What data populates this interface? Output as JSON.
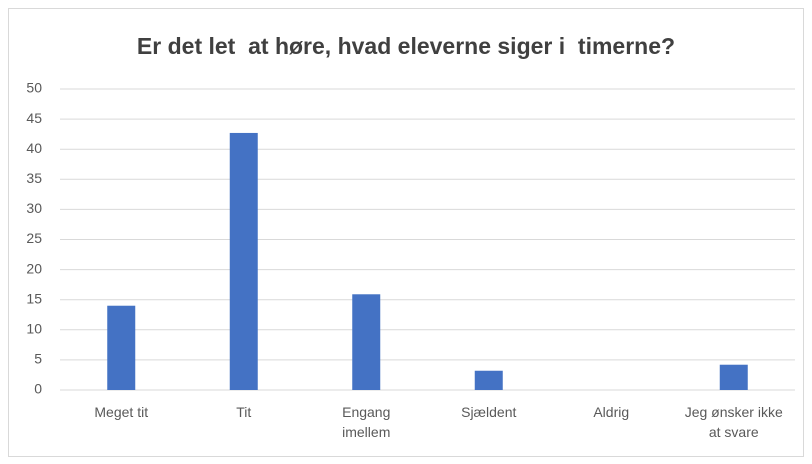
{
  "chart_data": {
    "type": "bar",
    "title": "Er det let  at høre, hvad eleverne siger i  timerne?",
    "categories": [
      "Meget tit",
      "Tit",
      "Engang imellem",
      "Sjældent",
      "Aldrig",
      "Jeg ønsker ikke at svare"
    ],
    "values": [
      14,
      42.7,
      15.9,
      3.2,
      0,
      4.2
    ],
    "color": "#4472c4",
    "ylim": [
      0,
      50
    ],
    "yticks": [
      0,
      5,
      10,
      15,
      20,
      25,
      30,
      35,
      40,
      45,
      50
    ],
    "grid": true
  }
}
